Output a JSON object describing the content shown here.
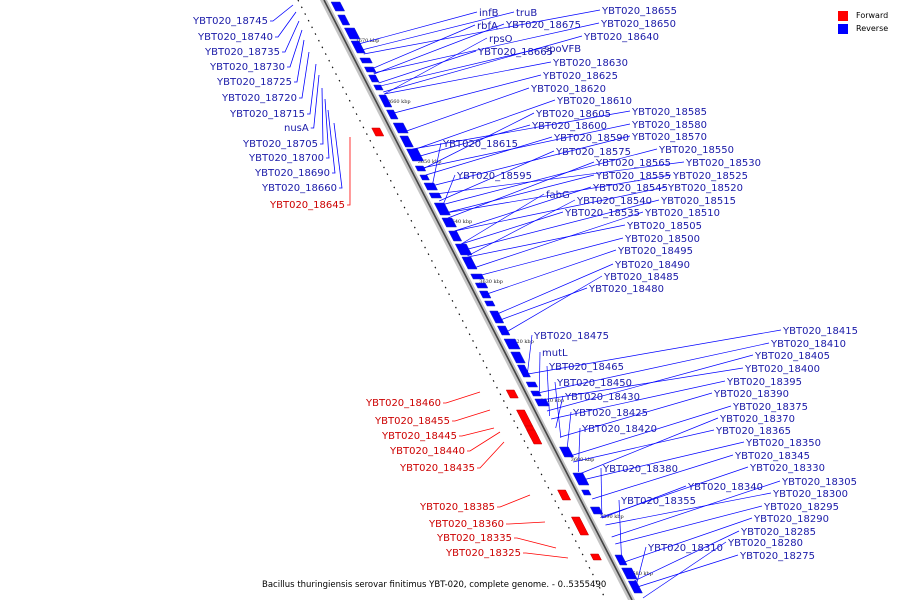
{
  "legend": {
    "forward": {
      "label": "Forward",
      "color": "#ff0000"
    },
    "reverse": {
      "label": "Reverse",
      "color": "#0000ff"
    }
  },
  "caption": "Bacillus thuringiensis serovar finitimus YBT-020, complete genome. - 0..5355490",
  "tick_labels": [
    "3670 kbp",
    "3660 kbp",
    "3650 kbp",
    "3640 kbp",
    "3630 kbp",
    "3620 kbp",
    "3610 kbp",
    "3600 kbp",
    "3590 kbp",
    "3580 kbp"
  ],
  "genes_left": [
    {
      "label": "YBT020_18745",
      "strand": "reverse"
    },
    {
      "label": "YBT020_18740",
      "strand": "reverse"
    },
    {
      "label": "YBT020_18735",
      "strand": "reverse"
    },
    {
      "label": "YBT020_18730",
      "strand": "reverse"
    },
    {
      "label": "YBT020_18725",
      "strand": "reverse"
    },
    {
      "label": "YBT020_18720",
      "strand": "reverse"
    },
    {
      "label": "YBT020_18715",
      "strand": "reverse"
    },
    {
      "label": "nusA",
      "strand": "reverse"
    },
    {
      "label": "YBT020_18705",
      "strand": "reverse"
    },
    {
      "label": "YBT020_18700",
      "strand": "reverse"
    },
    {
      "label": "YBT020_18690",
      "strand": "reverse"
    },
    {
      "label": "YBT020_18660",
      "strand": "reverse"
    },
    {
      "label": "YBT020_18645",
      "strand": "forward"
    },
    {
      "label": "YBT020_18460",
      "strand": "forward"
    },
    {
      "label": "YBT020_18455",
      "strand": "forward"
    },
    {
      "label": "YBT020_18445",
      "strand": "forward"
    },
    {
      "label": "YBT020_18440",
      "strand": "forward"
    },
    {
      "label": "YBT020_18435",
      "strand": "forward"
    },
    {
      "label": "YBT020_18385",
      "strand": "forward"
    },
    {
      "label": "YBT020_18360",
      "strand": "forward"
    },
    {
      "label": "YBT020_18335",
      "strand": "forward"
    },
    {
      "label": "YBT020_18325",
      "strand": "forward"
    }
  ],
  "genes_right": [
    {
      "label": "infB"
    },
    {
      "label": "truB"
    },
    {
      "label": "rbfA"
    },
    {
      "label": "YBT020_18675"
    },
    {
      "label": "rpsO"
    },
    {
      "label": "YBT020_18665"
    },
    {
      "label": "spoVFB"
    },
    {
      "label": "YBT020_18655"
    },
    {
      "label": "YBT020_18650"
    },
    {
      "label": "YBT020_18640"
    },
    {
      "label": "YBT020_18630"
    },
    {
      "label": "YBT020_18625"
    },
    {
      "label": "YBT020_18620"
    },
    {
      "label": "YBT020_18610"
    },
    {
      "label": "YBT020_18605"
    },
    {
      "label": "YBT020_18600"
    },
    {
      "label": "YBT020_18590"
    },
    {
      "label": "YBT020_18615"
    },
    {
      "label": "YBT020_18575"
    },
    {
      "label": "YBT020_18565"
    },
    {
      "label": "YBT020_18595"
    },
    {
      "label": "YBT020_18555"
    },
    {
      "label": "YBT020_18545"
    },
    {
      "label": "fabG"
    },
    {
      "label": "YBT020_18540"
    },
    {
      "label": "YBT020_18535"
    },
    {
      "label": "YBT020_18585"
    },
    {
      "label": "YBT020_18580"
    },
    {
      "label": "YBT020_18570"
    },
    {
      "label": "YBT020_18550"
    },
    {
      "label": "YBT020_18530"
    },
    {
      "label": "YBT020_18525"
    },
    {
      "label": "YBT020_18520"
    },
    {
      "label": "YBT020_18515"
    },
    {
      "label": "YBT020_18510"
    },
    {
      "label": "YBT020_18505"
    },
    {
      "label": "YBT020_18500"
    },
    {
      "label": "YBT020_18495"
    },
    {
      "label": "YBT020_18490"
    },
    {
      "label": "YBT020_18485"
    },
    {
      "label": "YBT020_18480"
    },
    {
      "label": "YBT020_18475"
    },
    {
      "label": "mutL"
    },
    {
      "label": "YBT020_18465"
    },
    {
      "label": "YBT020_18450"
    },
    {
      "label": "YBT020_18430"
    },
    {
      "label": "YBT020_18425"
    },
    {
      "label": "YBT020_18420"
    },
    {
      "label": "YBT020_18380"
    },
    {
      "label": "YBT020_18355"
    },
    {
      "label": "YBT020_18340"
    },
    {
      "label": "YBT020_18310"
    },
    {
      "label": "YBT020_18415"
    },
    {
      "label": "YBT020_18410"
    },
    {
      "label": "YBT020_18405"
    },
    {
      "label": "YBT020_18400"
    },
    {
      "label": "YBT020_18395"
    },
    {
      "label": "YBT020_18390"
    },
    {
      "label": "YBT020_18375"
    },
    {
      "label": "YBT020_18370"
    },
    {
      "label": "YBT020_18365"
    },
    {
      "label": "YBT020_18350"
    },
    {
      "label": "YBT020_18345"
    },
    {
      "label": "YBT020_18330"
    },
    {
      "label": "YBT020_18305"
    },
    {
      "label": "YBT020_18300"
    },
    {
      "label": "YBT020_18295"
    },
    {
      "label": "YBT020_18290"
    },
    {
      "label": "YBT020_18285"
    },
    {
      "label": "YBT020_18280"
    },
    {
      "label": "YBT020_18275"
    }
  ]
}
